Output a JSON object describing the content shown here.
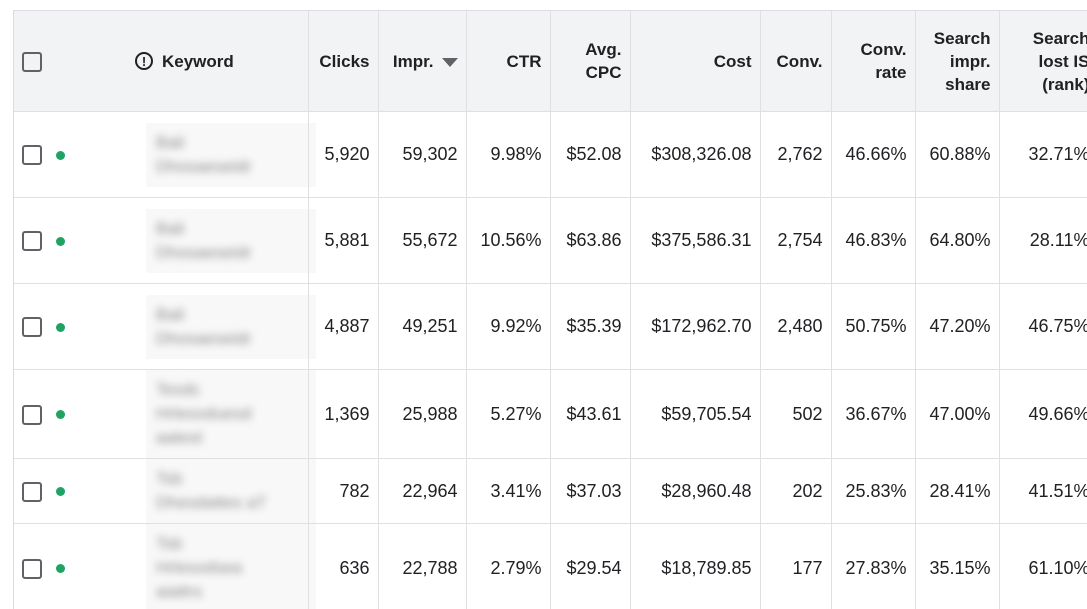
{
  "headers": {
    "keyword": "Keyword",
    "clicks": "Clicks",
    "impr": "Impr.",
    "ctr": "CTR",
    "avg_cpc_1": "Avg.",
    "avg_cpc_2": "CPC",
    "cost": "Cost",
    "conv": "Conv.",
    "conv_rate_1": "Conv.",
    "conv_rate_2": "rate",
    "search_impr_1": "Search",
    "search_impr_2": "impr.",
    "search_impr_3": "share",
    "search_lost_1": "Search",
    "search_lost_2": "lost IS",
    "search_lost_3": "(rank)"
  },
  "status_color": "#1ea362",
  "icons": {
    "info": "info-circle-icon",
    "sort": "sort-descending-icon"
  },
  "rows": [
    {
      "kw": [
        "Bali",
        "Dhosaeseidr"
      ],
      "clicks": "5,920",
      "impr": "59,302",
      "ctr": "9.98%",
      "avg_cpc": "$52.08",
      "cost": "$308,326.08",
      "conv": "2,762",
      "conv_rate": "46.66%",
      "search_impr": "60.88%",
      "search_lost": "32.71%"
    },
    {
      "kw": [
        "Bali",
        "Dhosaeseidr"
      ],
      "clicks": "5,881",
      "impr": "55,672",
      "ctr": "10.56%",
      "avg_cpc": "$63.86",
      "cost": "$375,586.31",
      "conv": "2,754",
      "conv_rate": "46.83%",
      "search_impr": "64.80%",
      "search_lost": "28.11%"
    },
    {
      "kw": [
        "Bali",
        "Dhosaeseidr"
      ],
      "clicks": "4,887",
      "impr": "49,251",
      "ctr": "9.92%",
      "avg_cpc": "$35.39",
      "cost": "$172,962.70",
      "conv": "2,480",
      "conv_rate": "50.75%",
      "search_impr": "47.20%",
      "search_lost": "46.75%"
    },
    {
      "kw": [
        "Tesdc",
        "Hrlesoduesd",
        "aatest"
      ],
      "clicks": "1,369",
      "impr": "25,988",
      "ctr": "5.27%",
      "avg_cpc": "$43.61",
      "cost": "$59,705.54",
      "conv": "502",
      "conv_rate": "36.67%",
      "search_impr": "47.00%",
      "search_lost": "49.66%"
    },
    {
      "kw": [
        "Tsb",
        "Dhesdattes aT"
      ],
      "clicks": "782",
      "impr": "22,964",
      "ctr": "3.41%",
      "avg_cpc": "$37.03",
      "cost": "$28,960.48",
      "conv": "202",
      "conv_rate": "25.83%",
      "search_impr": "28.41%",
      "search_lost": "41.51%"
    },
    {
      "kw": [
        "Tsb",
        "Hrlesodsea",
        "aiattrs"
      ],
      "clicks": "636",
      "impr": "22,788",
      "ctr": "2.79%",
      "avg_cpc": "$29.54",
      "cost": "$18,789.85",
      "conv": "177",
      "conv_rate": "27.83%",
      "search_impr": "35.15%",
      "search_lost": "61.10%"
    }
  ]
}
